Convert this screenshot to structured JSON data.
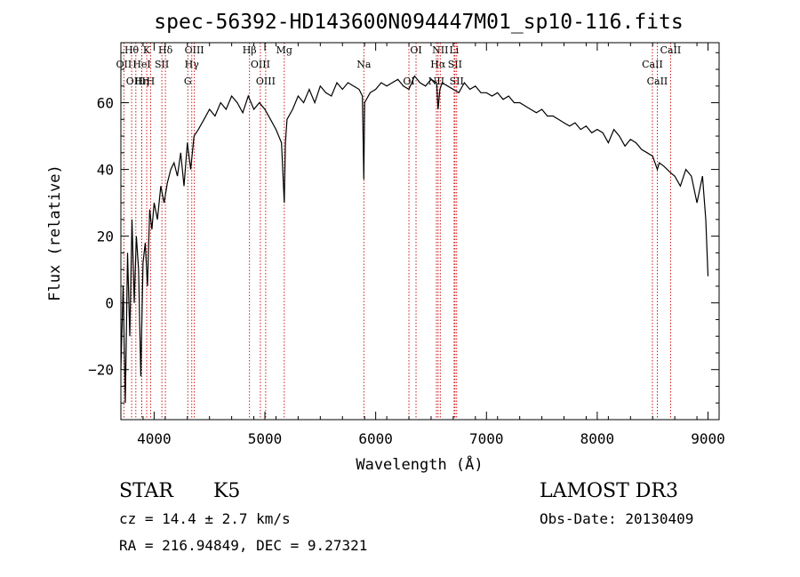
{
  "chart_data": {
    "type": "line",
    "title": "spec-56392-HD143600N094447M01_sp10-116.fits",
    "xlabel": "Wavelength (Å)",
    "ylabel": "Flux (relative)",
    "xlim": [
      3700,
      9100
    ],
    "ylim": [
      -35,
      78
    ],
    "x_ticks": [
      4000,
      5000,
      6000,
      7000,
      8000,
      9000
    ],
    "x_tick_labels": [
      "4000",
      "5000",
      "6000",
      "7000",
      "8000",
      "9000"
    ],
    "y_ticks": [
      -20,
      0,
      20,
      40,
      60
    ],
    "y_tick_labels": [
      "−20",
      "0",
      "20",
      "40",
      "60"
    ],
    "series": [
      {
        "name": "flux",
        "x": [
          3700,
          3720,
          3740,
          3760,
          3780,
          3800,
          3820,
          3840,
          3860,
          3880,
          3900,
          3920,
          3940,
          3960,
          3980,
          4000,
          4030,
          4060,
          4090,
          4120,
          4150,
          4180,
          4210,
          4240,
          4270,
          4300,
          4330,
          4360,
          4400,
          4450,
          4500,
          4550,
          4600,
          4650,
          4700,
          4750,
          4800,
          4850,
          4900,
          4950,
          5000,
          5050,
          5100,
          5150,
          5175,
          5185,
          5200,
          5250,
          5300,
          5350,
          5400,
          5450,
          5500,
          5550,
          5600,
          5650,
          5700,
          5750,
          5800,
          5850,
          5880,
          5893,
          5900,
          5950,
          6000,
          6050,
          6100,
          6150,
          6200,
          6250,
          6300,
          6350,
          6400,
          6450,
          6500,
          6550,
          6563,
          6580,
          6600,
          6650,
          6700,
          6750,
          6800,
          6850,
          6900,
          6950,
          7000,
          7050,
          7100,
          7150,
          7200,
          7250,
          7300,
          7350,
          7400,
          7450,
          7500,
          7550,
          7600,
          7650,
          7700,
          7750,
          7800,
          7850,
          7900,
          7950,
          8000,
          8050,
          8100,
          8150,
          8200,
          8250,
          8300,
          8350,
          8400,
          8450,
          8500,
          8542,
          8560,
          8600,
          8662,
          8700,
          8750,
          8800,
          8850,
          8900,
          8950,
          8980,
          9000
        ],
        "y": [
          -20,
          5,
          -30,
          15,
          -10,
          25,
          0,
          20,
          10,
          -22,
          12,
          18,
          5,
          28,
          22,
          30,
          25,
          35,
          30,
          36,
          40,
          42,
          38,
          45,
          35,
          48,
          40,
          50,
          52,
          55,
          58,
          56,
          60,
          58,
          62,
          60,
          57,
          62,
          58,
          60,
          58,
          55,
          52,
          48,
          30,
          48,
          55,
          58,
          62,
          60,
          64,
          60,
          65,
          63,
          62,
          66,
          64,
          66,
          65,
          64,
          62,
          37,
          60,
          63,
          64,
          66,
          65,
          66,
          67,
          65,
          64,
          68,
          66,
          65,
          67,
          66,
          58,
          64,
          66,
          65,
          64,
          63,
          66,
          64,
          65,
          63,
          63,
          62,
          63,
          61,
          62,
          60,
          60,
          59,
          58,
          57,
          58,
          56,
          56,
          55,
          54,
          53,
          54,
          52,
          53,
          51,
          52,
          51,
          48,
          52,
          50,
          47,
          49,
          48,
          46,
          45,
          44,
          40,
          42,
          41,
          39,
          38,
          35,
          40,
          38,
          30,
          38,
          25,
          8
        ]
      }
    ],
    "line_markers": [
      {
        "label": "Hθ",
        "x": 3797
      },
      {
        "label": "OII",
        "x": 3727
      },
      {
        "label": "OIII",
        "x": 3835
      },
      {
        "label": "K",
        "x": 3933
      },
      {
        "label": "HeI",
        "x": 3889
      },
      {
        "label": "Hη",
        "x": 3889
      },
      {
        "label": "Hδ",
        "x": 4102
      },
      {
        "label": "SII",
        "x": 4070
      },
      {
        "label": "H",
        "x": 3968
      },
      {
        "label": "OIII",
        "x": 4363
      },
      {
        "label": "Hγ",
        "x": 4340
      },
      {
        "label": "G",
        "x": 4304
      },
      {
        "label": "Hβ",
        "x": 4861
      },
      {
        "label": "OIII",
        "x": 4959
      },
      {
        "label": "OIII",
        "x": 5007
      },
      {
        "label": "Mg",
        "x": 5175
      },
      {
        "label": "Na",
        "x": 5893
      },
      {
        "label": "OI",
        "x": 6300
      },
      {
        "label": "OI",
        "x": 6364
      },
      {
        "label": "Hα",
        "x": 6563
      },
      {
        "label": "NII",
        "x": 6548
      },
      {
        "label": "NII",
        "x": 6583
      },
      {
        "label": "SII",
        "x": 6716
      },
      {
        "label": "SII",
        "x": 6731
      },
      {
        "label": "Li",
        "x": 6708
      },
      {
        "label": "CaII",
        "x": 8498
      },
      {
        "label": "CaII",
        "x": 8542
      },
      {
        "label": "CaII",
        "x": 8662
      }
    ],
    "colors": {
      "spectrum": "#000000",
      "markers": "#cc0000",
      "axes": "#000000"
    }
  },
  "info": {
    "class": "STAR",
    "subclass": "K5",
    "survey": "LAMOST DR3",
    "cz": "cz = 14.4 ± 2.7 km/s",
    "obs_date": "Obs-Date: 20130409",
    "coords": "RA = 216.94849, DEC =   9.27321"
  }
}
